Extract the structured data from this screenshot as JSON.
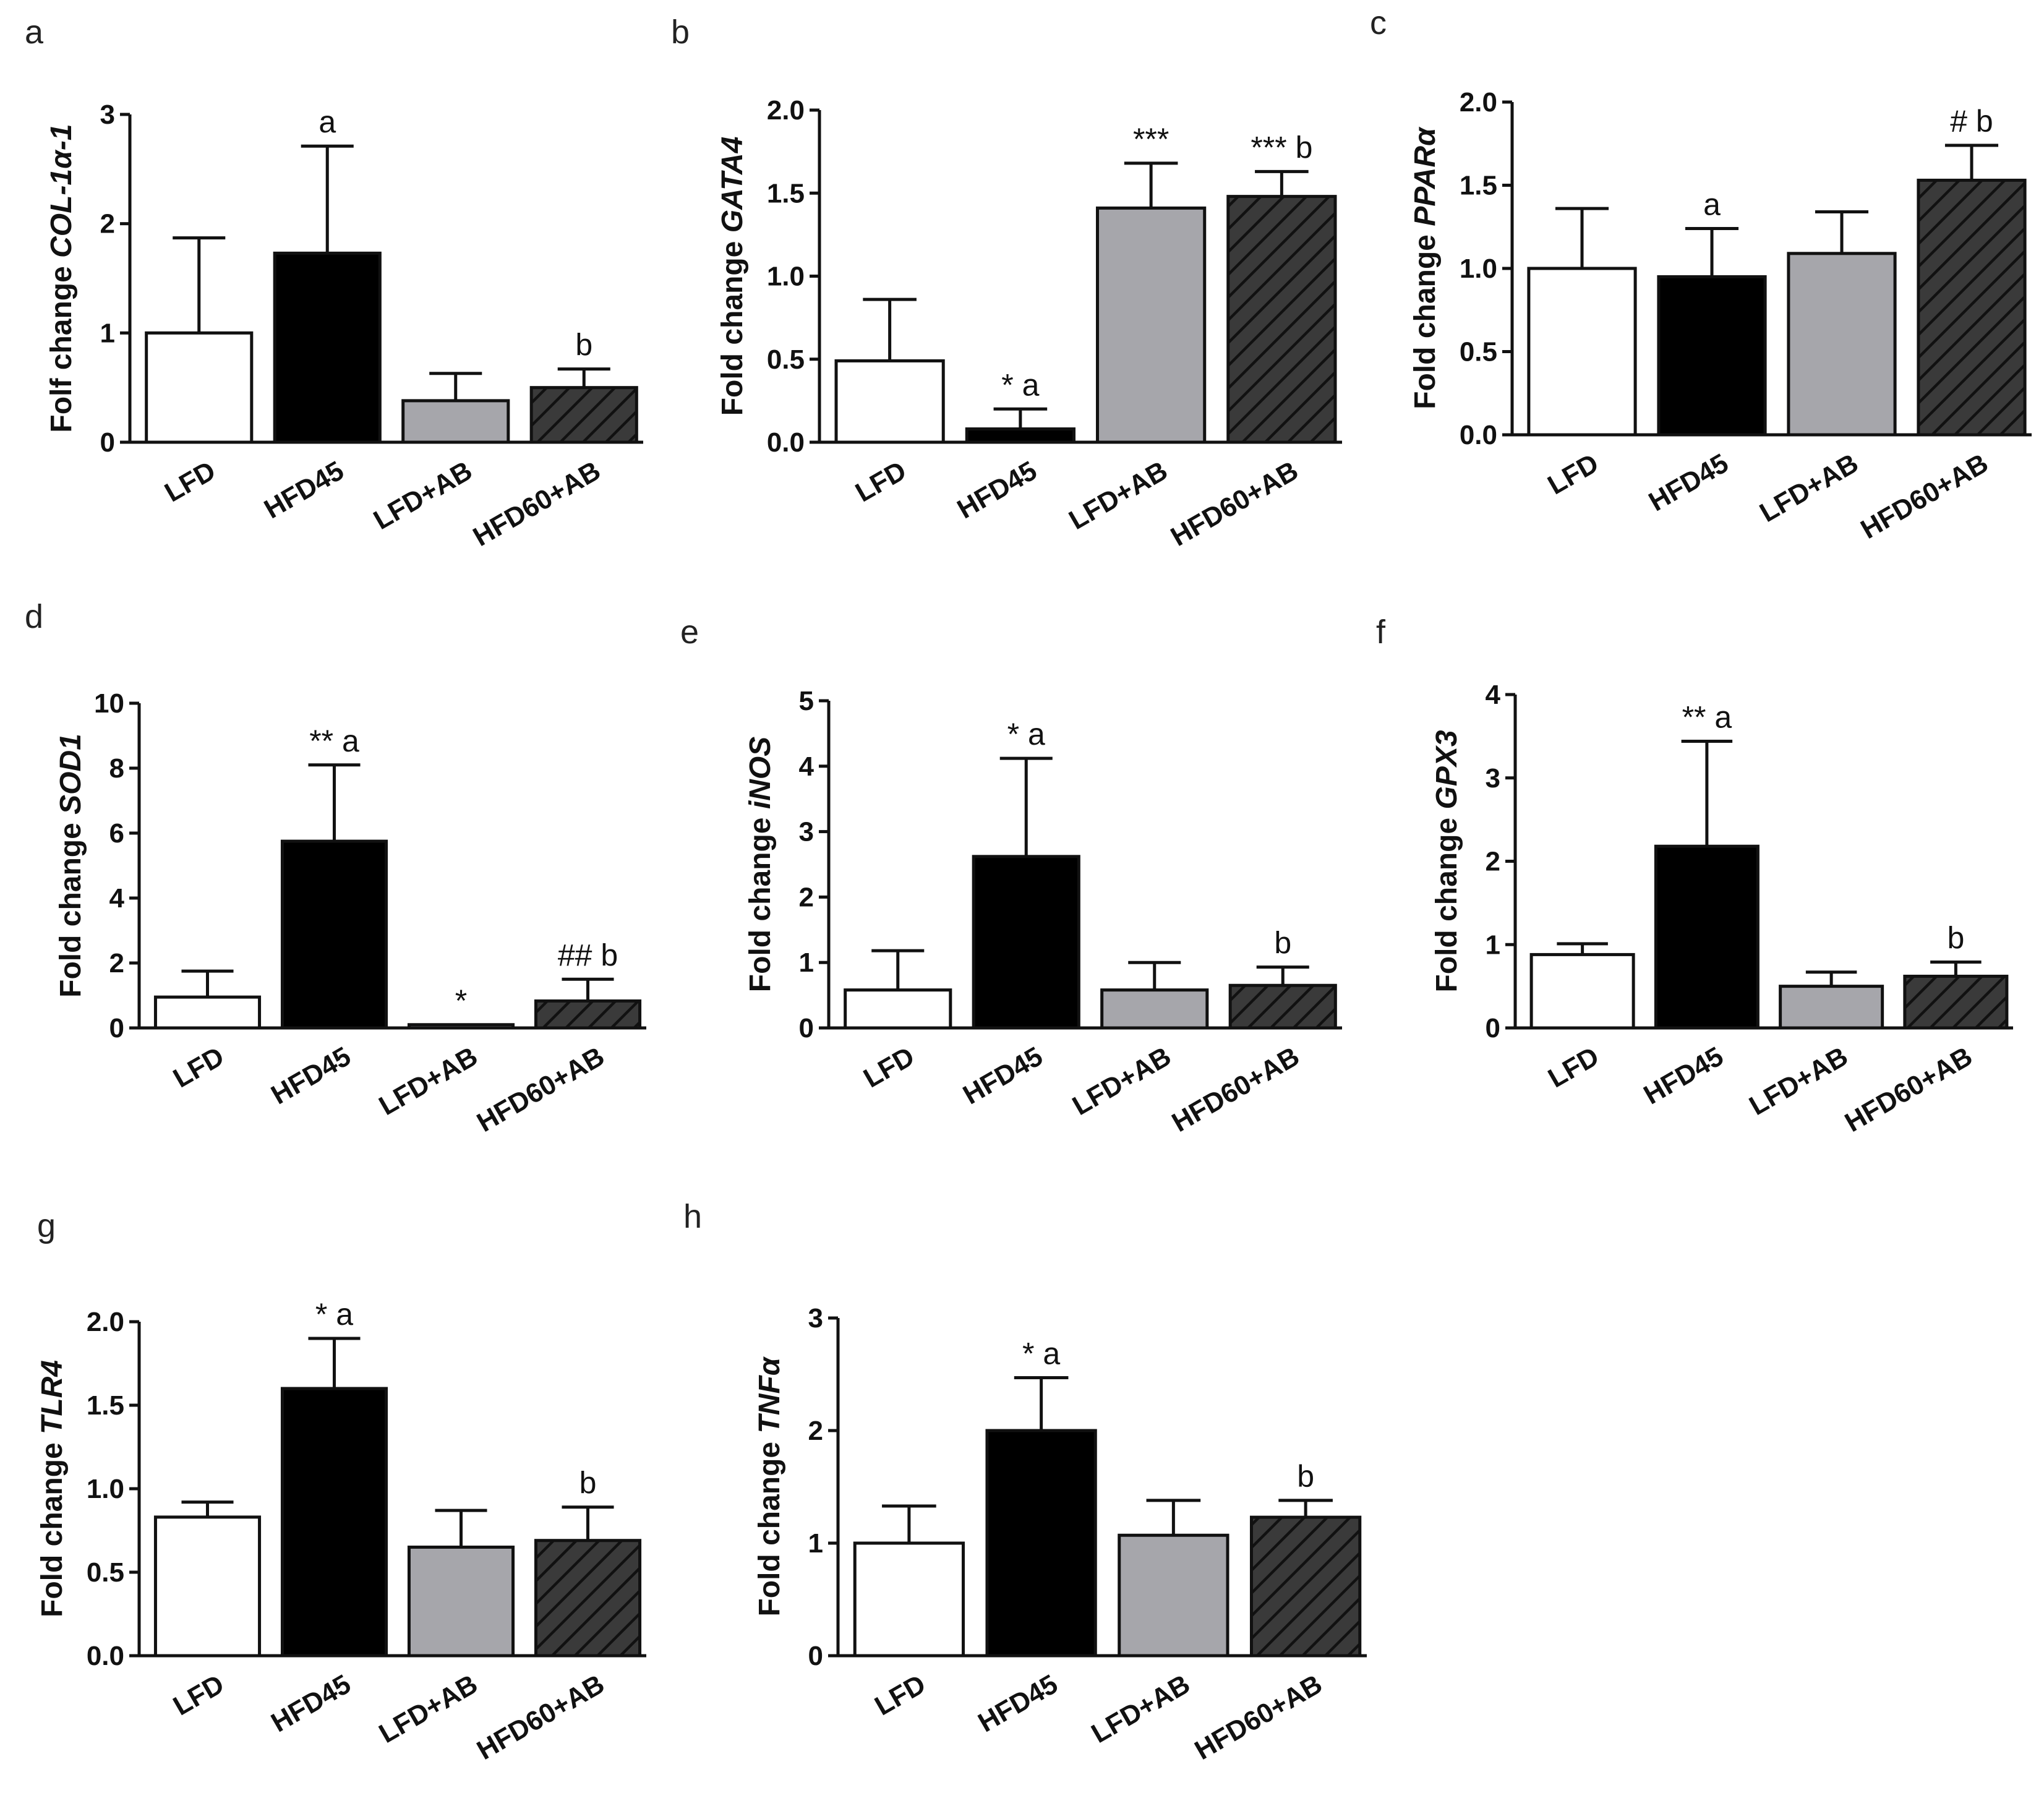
{
  "patterns": {
    "LFD": {
      "fill": "#ffffff",
      "hatch": false
    },
    "HFD45": {
      "fill": "#000000",
      "hatch": false
    },
    "LFD+AB": {
      "fill": "#a6a6ab",
      "hatch": false
    },
    "HFD60+AB": {
      "fill": "#3a3a3a",
      "hatch": true,
      "hatch_color": "#111111"
    }
  },
  "chart_data": [
    {
      "panel": "a",
      "type": "bar",
      "title": "",
      "ylabel_prefix": "Folf change ",
      "ylabel_gene": "COL-1α-1",
      "categories": [
        "LFD",
        "HFD45",
        "LFD+AB",
        "HFD60+AB"
      ],
      "values": [
        1.0,
        1.73,
        0.38,
        0.5
      ],
      "errors": [
        0.87,
        0.98,
        0.25,
        0.17
      ],
      "annotations": [
        "",
        "a",
        "",
        "b"
      ],
      "ylim": [
        0,
        3
      ],
      "yticks": [
        "0",
        "1",
        "2",
        "3"
      ]
    },
    {
      "panel": "b",
      "type": "bar",
      "title": "",
      "ylabel_prefix": "Fold change ",
      "ylabel_gene": "GATA4",
      "categories": [
        "LFD",
        "HFD45",
        "LFD+AB",
        "HFD60+AB"
      ],
      "values": [
        0.49,
        0.08,
        1.41,
        1.48
      ],
      "errors": [
        0.37,
        0.12,
        0.27,
        0.15
      ],
      "annotations": [
        "",
        "* a",
        "***",
        "*** b"
      ],
      "ylim": [
        0,
        2
      ],
      "yticks": [
        "0.0",
        "0.5",
        "1.0",
        "1.5",
        "2.0"
      ]
    },
    {
      "panel": "c",
      "type": "bar",
      "title": "",
      "ylabel_prefix": "Fold change ",
      "ylabel_gene": "PPARα",
      "categories": [
        "LFD",
        "HFD45",
        "LFD+AB",
        "HFD60+AB"
      ],
      "values": [
        1.0,
        0.95,
        1.09,
        1.53
      ],
      "errors": [
        0.36,
        0.29,
        0.25,
        0.21
      ],
      "annotations": [
        "",
        "a",
        "",
        "# b"
      ],
      "ylim": [
        0,
        2
      ],
      "yticks": [
        "0.0",
        "0.5",
        "1.0",
        "1.5",
        "2.0"
      ]
    },
    {
      "panel": "d",
      "type": "bar",
      "title": "",
      "ylabel_prefix": "Fold change ",
      "ylabel_gene": "SOD1",
      "categories": [
        "LFD",
        "HFD45",
        "LFD+AB",
        "HFD60+AB"
      ],
      "values": [
        0.95,
        5.75,
        0.1,
        0.83
      ],
      "errors": [
        0.8,
        2.35,
        0.0,
        0.67
      ],
      "annotations": [
        "",
        "** a",
        "*",
        "## b"
      ],
      "ylim": [
        0,
        10
      ],
      "yticks": [
        "0",
        "2",
        "4",
        "6",
        "8",
        "10"
      ]
    },
    {
      "panel": "e",
      "type": "bar",
      "title": "",
      "ylabel_prefix": "Fold change ",
      "ylabel_gene": "iNOS",
      "categories": [
        "LFD",
        "HFD45",
        "LFD+AB",
        "HFD60+AB"
      ],
      "values": [
        0.58,
        2.62,
        0.58,
        0.65
      ],
      "errors": [
        0.6,
        1.5,
        0.42,
        0.28
      ],
      "annotations": [
        "",
        "* a",
        "",
        "b"
      ],
      "ylim": [
        0,
        5
      ],
      "yticks": [
        "0",
        "1",
        "2",
        "3",
        "4",
        "5"
      ]
    },
    {
      "panel": "f",
      "type": "bar",
      "title": "",
      "ylabel_prefix": "Fold change ",
      "ylabel_gene": "GPX3",
      "categories": [
        "LFD",
        "HFD45",
        "LFD+AB",
        "HFD60+AB"
      ],
      "values": [
        0.88,
        2.18,
        0.5,
        0.62
      ],
      "errors": [
        0.13,
        1.26,
        0.17,
        0.17
      ],
      "annotations": [
        "",
        "** a",
        "",
        "b"
      ],
      "ylim": [
        0,
        4
      ],
      "yticks": [
        "0",
        "1",
        "2",
        "3",
        "4"
      ]
    },
    {
      "panel": "g",
      "type": "bar",
      "title": "",
      "ylabel_prefix": "Fold change ",
      "ylabel_gene": "TLR4",
      "categories": [
        "LFD",
        "HFD45",
        "LFD+AB",
        "HFD60+AB"
      ],
      "values": [
        0.83,
        1.6,
        0.65,
        0.69
      ],
      "errors": [
        0.09,
        0.3,
        0.22,
        0.2
      ],
      "annotations": [
        "",
        "* a",
        "",
        "b"
      ],
      "ylim": [
        0,
        2
      ],
      "yticks": [
        "0.0",
        "0.5",
        "1.0",
        "1.5",
        "2.0"
      ]
    },
    {
      "panel": "h",
      "type": "bar",
      "title": "",
      "ylabel_prefix": "Fold change ",
      "ylabel_gene": "TNFα",
      "categories": [
        "LFD",
        "HFD45",
        "LFD+AB",
        "HFD60+AB"
      ],
      "values": [
        1.0,
        2.0,
        1.07,
        1.23
      ],
      "errors": [
        0.33,
        0.47,
        0.31,
        0.15
      ],
      "annotations": [
        "",
        "* a",
        "",
        "b"
      ],
      "ylim": [
        0,
        3
      ],
      "yticks": [
        "0",
        "1",
        "2",
        "3"
      ]
    }
  ]
}
